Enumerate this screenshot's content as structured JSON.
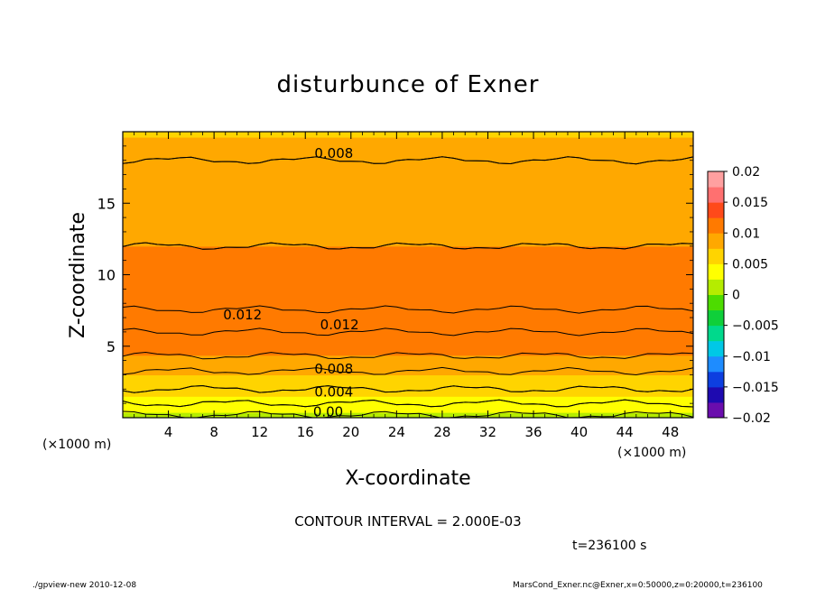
{
  "chart_data": {
    "type": "heatmap",
    "title": "disturbunce of Exner",
    "xlabel": "X-coordinate",
    "ylabel": "Z-coordinate",
    "x_unit_left": "(×1000 m)",
    "x_unit_right": "(×1000 m)",
    "xlim": [
      0,
      50
    ],
    "ylim": [
      0,
      20
    ],
    "x_ticks": [
      4,
      8,
      12,
      16,
      20,
      24,
      28,
      32,
      36,
      40,
      44,
      48
    ],
    "y_ticks": [
      5,
      10,
      15
    ],
    "contour_labels": [
      {
        "text": "0.008",
        "x": 18.5,
        "z": 18.5
      },
      {
        "text": "0.012",
        "x": 10.5,
        "z": 7.2
      },
      {
        "text": "0.012",
        "x": 19.0,
        "z": 6.5
      },
      {
        "text": "0.008",
        "x": 18.5,
        "z": 3.4
      },
      {
        "text": "0.004",
        "x": 18.5,
        "z": 1.8
      },
      {
        "text": "0.00",
        "x": 18.0,
        "z": 0.4
      }
    ],
    "z_profile": [
      {
        "z": 0,
        "value": 0.0015
      },
      {
        "z": 1,
        "value": 0.004
      },
      {
        "z": 2,
        "value": 0.006
      },
      {
        "z": 3,
        "value": 0.0075
      },
      {
        "z": 4,
        "value": 0.0095
      },
      {
        "z": 5,
        "value": 0.011
      },
      {
        "z": 6.5,
        "value": 0.0125
      },
      {
        "z": 8,
        "value": 0.0118
      },
      {
        "z": 10,
        "value": 0.0108
      },
      {
        "z": 12,
        "value": 0.01
      },
      {
        "z": 14,
        "value": 0.0092
      },
      {
        "z": 16,
        "value": 0.0086
      },
      {
        "z": 18,
        "value": 0.008
      },
      {
        "z": 20,
        "value": 0.0074
      }
    ],
    "colorbar": {
      "min": -0.02,
      "max": 0.02,
      "labels": [
        "0.02",
        "0.015",
        "0.01",
        "0.005",
        "0",
        "−0.005",
        "−0.01",
        "−0.015",
        "−0.02"
      ],
      "colors": [
        "#6a0dad",
        "#1e0ab0",
        "#0d3fe0",
        "#1e8cff",
        "#00c8e6",
        "#00d98c",
        "#0fcf3a",
        "#4ddc00",
        "#b5ec00",
        "#ffff00",
        "#ffd400",
        "#ffa800",
        "#ff7a00",
        "#ff4a1a",
        "#ff7070",
        "#ffa0a0"
      ]
    },
    "contour_interval_text": "CONTOUR INTERVAL = 2.000E-03",
    "time_text": "t=236100 s"
  },
  "footer": {
    "left": "./gpview-new  2010-12-08",
    "right": "MarsCond_Exner.nc@Exner,x=0:50000,z=0:20000,t=236100"
  }
}
